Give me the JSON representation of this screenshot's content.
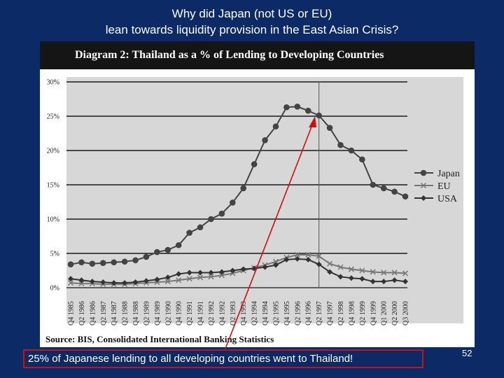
{
  "slide": {
    "title_line1": "Why did Japan (not US or EU)",
    "title_line2": "lean towards liquidity provision in the East Asian Crisis?",
    "callout": "25% of Japanese lending to all developing countries went to Thailand!",
    "page_number": "52",
    "colors": {
      "background": "#0b2a66",
      "callout_border": "#cc1111",
      "arrow": "#cc1111"
    }
  },
  "chart_data": {
    "type": "line",
    "title": "Diagram 2: Thailand as a % of Lending to Developing Countries",
    "source": "Source: BIS, Consolidated International Banking Statistics",
    "categories": [
      "Q4 1985",
      "Q2 1986",
      "Q4 1986",
      "Q2 1987",
      "Q4 1987",
      "Q2 1988",
      "Q4 1988",
      "Q2 1989",
      "Q4 1989",
      "Q2 1990",
      "Q4 1990",
      "Q2 1991",
      "Q4 1991",
      "Q2 1992",
      "Q4 1992",
      "Q2 1993",
      "Q4 1993",
      "Q2 1994",
      "Q4 1994",
      "Q2 1995",
      "Q4 1995",
      "Q2 1996",
      "Q4 1996",
      "Q2 1997",
      "Q4 1997",
      "Q2 1998",
      "Q4 1998",
      "Q2 1999",
      "Q4 1999",
      "Q1 2000",
      "Q2 2000",
      "Q3 2000"
    ],
    "yticks": [
      "0%",
      "5%",
      "10%",
      "15%",
      "20%",
      "25%",
      "30%"
    ],
    "ylim": [
      0,
      30
    ],
    "grid": "horizontal",
    "vline_category": "Q2 1997",
    "legend_position": "right",
    "series": [
      {
        "name": "Japan",
        "marker": "circle",
        "color": "#444444",
        "values": [
          3.4,
          3.7,
          3.5,
          3.6,
          3.7,
          3.8,
          4.0,
          4.5,
          5.2,
          5.5,
          6.2,
          8.0,
          8.8,
          10.0,
          10.8,
          12.4,
          14.5,
          18.0,
          21.5,
          23.5,
          26.3,
          26.4,
          25.8,
          25.1,
          23.3,
          20.8,
          20.0,
          18.7,
          15.0,
          14.5,
          14.0,
          13.3
        ]
      },
      {
        "name": "EU",
        "marker": "x",
        "color": "#777777",
        "values": [
          0.7,
          0.6,
          0.6,
          0.5,
          0.5,
          0.5,
          0.6,
          0.7,
          0.8,
          0.9,
          1.1,
          1.3,
          1.5,
          1.6,
          1.8,
          2.1,
          2.5,
          2.9,
          3.3,
          3.8,
          4.4,
          4.8,
          4.8,
          4.6,
          3.5,
          3.0,
          2.7,
          2.5,
          2.3,
          2.2,
          2.2,
          2.1
        ]
      },
      {
        "name": "USA",
        "marker": "diamond",
        "color": "#333333",
        "values": [
          1.3,
          1.1,
          0.9,
          0.8,
          0.7,
          0.7,
          0.8,
          1.0,
          1.2,
          1.5,
          2.0,
          2.2,
          2.2,
          2.2,
          2.3,
          2.5,
          2.7,
          2.8,
          3.0,
          3.3,
          4.1,
          4.2,
          4.1,
          3.4,
          2.3,
          1.6,
          1.4,
          1.3,
          0.9,
          0.9,
          1.1,
          0.9
        ]
      }
    ]
  }
}
